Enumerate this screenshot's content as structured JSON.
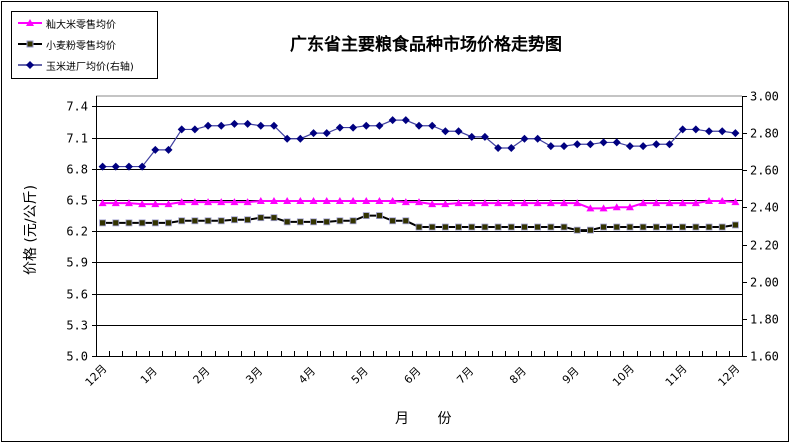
{
  "chart_data": {
    "type": "line",
    "title": "广东省主要粮食品种市场价格走势图",
    "xlabel": "月  份",
    "ylabel": "价格 (元/公斤)",
    "ylabel_right": "",
    "ylim": [
      5.0,
      7.5
    ],
    "yticks": [
      5.0,
      5.3,
      5.6,
      5.9,
      6.2,
      6.5,
      6.8,
      7.1,
      7.4
    ],
    "ylim_right": [
      1.6,
      3.0
    ],
    "yticks_right": [
      1.6,
      1.8,
      2.0,
      2.2,
      2.4,
      2.6,
      2.8,
      3.0
    ],
    "grid": true,
    "legend_position": "top-left",
    "x_tick_labels": [
      "12月",
      "1月",
      "2月",
      "3月",
      "4月",
      "5月",
      "6月",
      "7月",
      "8月",
      "9月",
      "10月",
      "11月",
      "12月"
    ],
    "x_tick_label_positions": [
      0,
      4,
      8,
      12,
      16,
      20,
      24,
      28,
      32,
      36,
      40,
      44,
      48
    ],
    "x": [
      1,
      2,
      3,
      4,
      5,
      6,
      7,
      8,
      9,
      10,
      11,
      12,
      13,
      14,
      15,
      16,
      17,
      18,
      19,
      20,
      21,
      22,
      23,
      24,
      25,
      26,
      27,
      28,
      29,
      30,
      31,
      32,
      33,
      34,
      35,
      36,
      37,
      38,
      39,
      40,
      41,
      42,
      43,
      44,
      45,
      46,
      47,
      48,
      49
    ],
    "series": [
      {
        "name": "籼大米零售均价",
        "axis": "left",
        "color": "#FF00FF",
        "marker": "triangle",
        "values": [
          6.47,
          6.47,
          6.47,
          6.46,
          6.46,
          6.46,
          6.48,
          6.48,
          6.48,
          6.48,
          6.48,
          6.48,
          6.49,
          6.49,
          6.49,
          6.49,
          6.49,
          6.49,
          6.49,
          6.49,
          6.49,
          6.49,
          6.49,
          6.48,
          6.48,
          6.46,
          6.46,
          6.47,
          6.47,
          6.47,
          6.47,
          6.47,
          6.47,
          6.47,
          6.47,
          6.47,
          6.47,
          6.42,
          6.42,
          6.43,
          6.43,
          6.47,
          6.47,
          6.47,
          6.47,
          6.47,
          6.49,
          6.49,
          6.48
        ]
      },
      {
        "name": "小麦粉零售均价",
        "axis": "left",
        "color": "#333300",
        "marker": "square",
        "values": [
          6.28,
          6.28,
          6.28,
          6.28,
          6.28,
          6.28,
          6.3,
          6.3,
          6.3,
          6.3,
          6.31,
          6.31,
          6.33,
          6.33,
          6.29,
          6.29,
          6.29,
          6.29,
          6.3,
          6.3,
          6.35,
          6.35,
          6.3,
          6.3,
          6.24,
          6.24,
          6.24,
          6.24,
          6.24,
          6.24,
          6.24,
          6.24,
          6.24,
          6.24,
          6.24,
          6.24,
          6.21,
          6.21,
          6.24,
          6.24,
          6.24,
          6.24,
          6.24,
          6.24,
          6.24,
          6.24,
          6.24,
          6.24,
          6.26
        ]
      },
      {
        "name": "玉米进厂均价(右轴)",
        "axis": "right",
        "color": "#000080",
        "marker": "diamond",
        "values": [
          2.62,
          2.62,
          2.62,
          2.62,
          2.71,
          2.71,
          2.82,
          2.82,
          2.84,
          2.84,
          2.85,
          2.85,
          2.84,
          2.84,
          2.77,
          2.77,
          2.8,
          2.8,
          2.83,
          2.83,
          2.84,
          2.84,
          2.87,
          2.87,
          2.84,
          2.84,
          2.81,
          2.81,
          2.78,
          2.78,
          2.72,
          2.72,
          2.77,
          2.77,
          2.73,
          2.73,
          2.74,
          2.74,
          2.75,
          2.75,
          2.73,
          2.73,
          2.74,
          2.74,
          2.82,
          2.82,
          2.81,
          2.81,
          2.8
        ]
      }
    ]
  },
  "legend": {
    "items": [
      "籼大米零售均价",
      "小麦粉零售均价",
      "玉米进厂均价(右轴)"
    ]
  }
}
